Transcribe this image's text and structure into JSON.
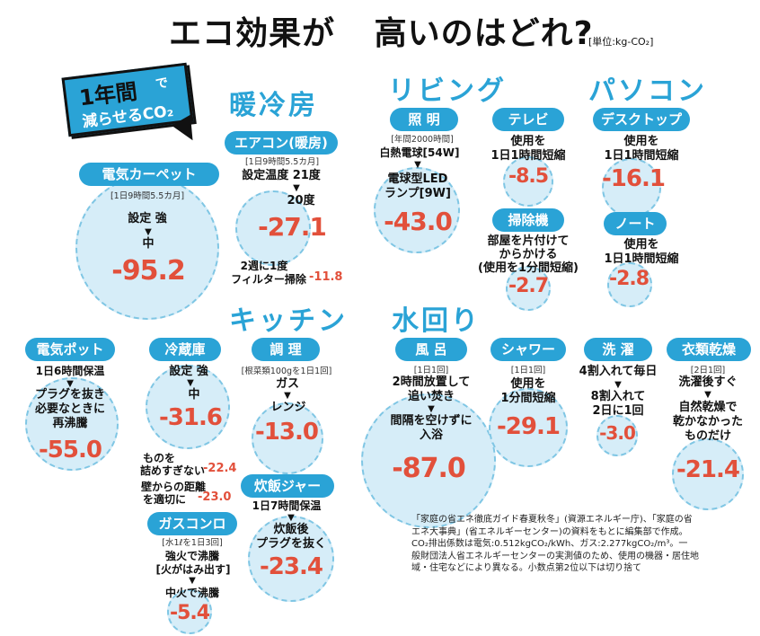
{
  "title": {
    "part1": "エコ効果が",
    "part2": "高いのはどれ?",
    "unit": "[単位:kg-CO₂]"
  },
  "badge": {
    "line1": "1年間",
    "de": "で",
    "line2": "減らせるCO₂"
  },
  "categories": {
    "heating": "暖冷房",
    "living": "リビング",
    "pc": "パソコン",
    "kitchen": "キッチン",
    "water": "水回り"
  },
  "denki_carpet": {
    "label": "電気カーペット",
    "cond": "[1日9時間5.5カ月]",
    "setting": "設定 強",
    "to": "中",
    "value": "-95.2"
  },
  "aircon": {
    "label": "エアコン(暖房)",
    "cond": "[1日9時間5.5カ月]",
    "setting": "設定温度 21度",
    "to": "20度",
    "value": "-27.1",
    "extra_label1": "2週に1度",
    "extra_label2": "フィルター掃除",
    "extra_value": "-11.8"
  },
  "lighting": {
    "label": "照 明",
    "cond": "[年間2000時間]",
    "from": "白熱電球[54W]",
    "to1": "電球型LED",
    "to2": "ランプ[9W]",
    "value": "-43.0"
  },
  "tv": {
    "label": "テレビ",
    "line1": "使用を",
    "line2": "1日1時間短縮",
    "value": "-8.5"
  },
  "vacuum": {
    "label": "掃除機",
    "line1": "部屋を片付けて",
    "line2": "からかける",
    "line3": "(使用を1分間短縮)",
    "value": "-2.7"
  },
  "desktop": {
    "label": "デスクトップ",
    "line1": "使用を",
    "line2": "1日1時間短縮",
    "value": "-16.1"
  },
  "notebook": {
    "label": "ノート",
    "line1": "使用を",
    "line2": "1日1時間短縮",
    "value": "-2.8"
  },
  "pot": {
    "label": "電気ポット",
    "cond": "1日6時間保温",
    "line1": "プラグを抜き",
    "line2": "必要なときに",
    "line3": "再沸騰",
    "value": "-55.0"
  },
  "fridge": {
    "label": "冷蔵庫",
    "setting": "設定 強",
    "to": "中",
    "value": "-31.6",
    "extra1_l1": "ものを",
    "extra1_l2": "詰めすぎない",
    "extra1_value": "-22.4",
    "extra2_l1": "壁からの距離",
    "extra2_l2": "を適切に",
    "extra2_value": "-23.0"
  },
  "cooking": {
    "label": "調 理",
    "cond": "[根菜類100gを1日1回]",
    "from": "ガス",
    "to": "レンジ",
    "value": "-13.0"
  },
  "rice": {
    "label": "炊飯ジャー",
    "cond": "1日7時間保温",
    "line1": "炊飯後",
    "line2": "プラグを抜く",
    "value": "-23.4"
  },
  "gas": {
    "label": "ガスコンロ",
    "cond": "[水1ℓを1日3回]",
    "from1": "強火で沸騰",
    "from2": "[火がはみ出す]",
    "to": "中火で沸騰",
    "value": "-5.4"
  },
  "bath": {
    "label": "風 呂",
    "cond": "[1日1回]",
    "line1": "2時間放置して",
    "line2": "追い焚き",
    "to1": "間隔を空けずに",
    "to2": "入浴",
    "value": "-87.0"
  },
  "shower": {
    "label": "シャワー",
    "cond": "[1日1回]",
    "line1": "使用を",
    "line2": "1分間短縮",
    "value": "-29.1"
  },
  "laundry": {
    "label": "洗 濯",
    "line1": "4割入れて毎日",
    "to1": "8割入れて",
    "to2": "2日に1回",
    "value": "-3.0"
  },
  "dryer": {
    "label": "衣類乾燥",
    "cond": "[2日1回]",
    "line1": "洗濯後すぐ",
    "to1": "自然乾燥で",
    "to2": "乾かなかった",
    "to3": "ものだけ",
    "value": "-21.4"
  },
  "footnote": {
    "l1": "「家庭の省エネ徹底ガイド春夏秋冬」(資源エネルギー庁)、「家庭の省",
    "l2": "エネ大事典」(省エネルギーセンター)の資料をもとに編集部で作成。",
    "l3": "CO₂排出係数は電気:0.512kgCO₂/kWh、ガス:2.277kgCO₂/m³。一",
    "l4": "般財団法人省エネルギーセンターの実測値のため、使用の機器・居住地",
    "l5": "域・住宅などにより異なる。小数点第2位以下は切り捨て"
  },
  "colors": {
    "accent": "#2aa3d6",
    "value": "#e2503b",
    "circle": "#d6edf8"
  }
}
